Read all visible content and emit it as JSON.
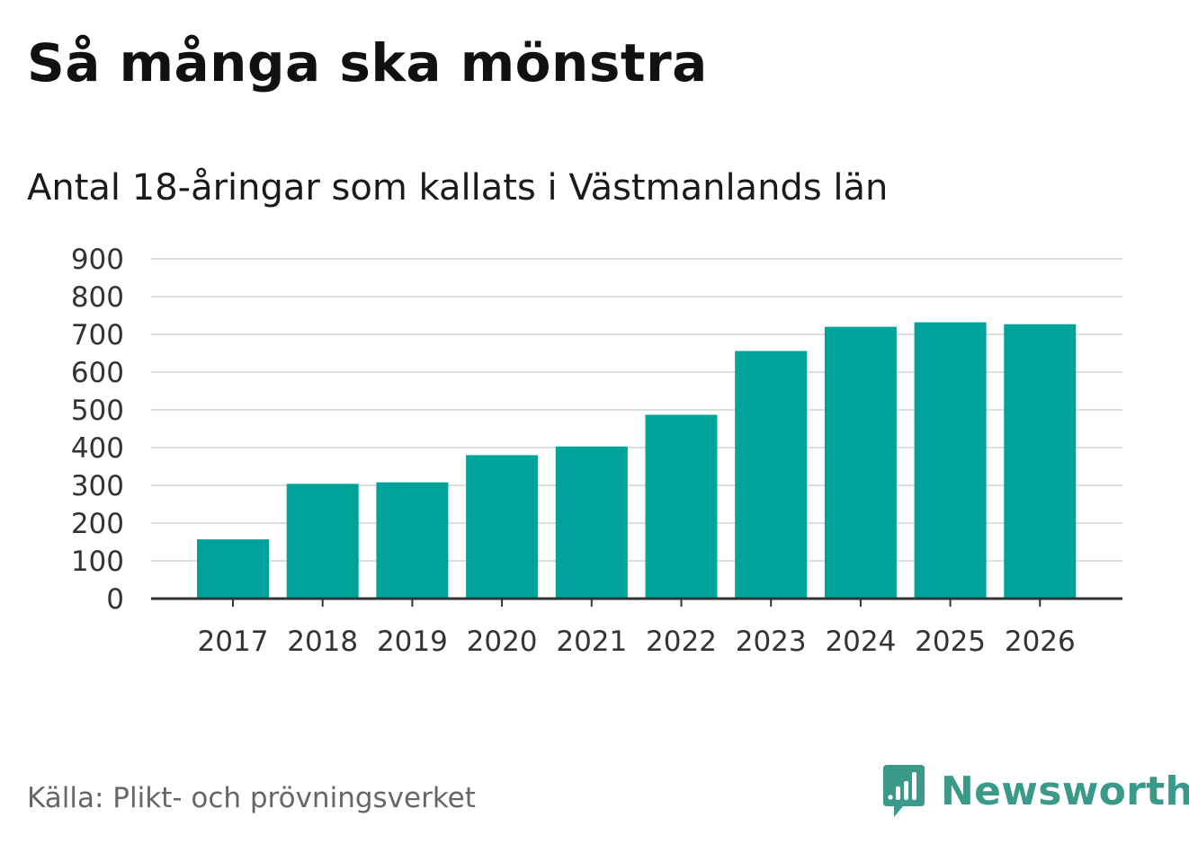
{
  "title": "Så många ska mönstra",
  "subtitle": "Antal 18-åringar som kallats i Västmanlands län",
  "source": "Källa: Plikt- och prövningsverket",
  "brand": {
    "name": "Newsworthy",
    "logo_icon": "bar-chart-speech-bubble-icon",
    "color": "#3a9a8a"
  },
  "colors": {
    "bar": "#00a39a",
    "grid": "#dddddd",
    "axis": "#333333",
    "tick_text": "#333333"
  },
  "chart_data": {
    "type": "bar",
    "title": "Så många ska mönstra",
    "subtitle": "Antal 18-åringar som kallats i Västmanlands län",
    "xlabel": "",
    "ylabel": "",
    "categories": [
      "2017",
      "2018",
      "2019",
      "2020",
      "2021",
      "2022",
      "2023",
      "2024",
      "2025",
      "2026"
    ],
    "values": [
      157,
      304,
      308,
      380,
      403,
      487,
      656,
      720,
      732,
      727
    ],
    "ylim": [
      0,
      900
    ],
    "yticks": [
      0,
      100,
      200,
      300,
      400,
      500,
      600,
      700,
      800,
      900
    ],
    "grid": true,
    "legend": "none"
  }
}
